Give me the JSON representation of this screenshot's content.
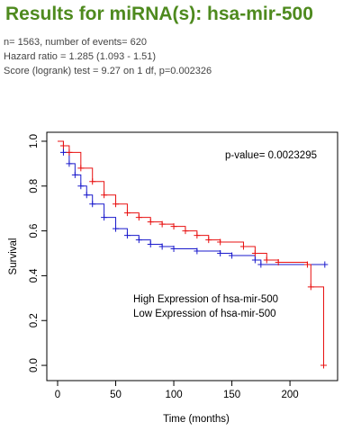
{
  "header": {
    "title": "Results for miRNA(s): hsa-mir-500",
    "stats": [
      "n= 1563, number of events= 620",
      "Hazard ratio = 1.285 (1.093 - 1.51)",
      "Score (logrank) test = 9.27 on 1 df, p=0.002326"
    ]
  },
  "chart_data": {
    "type": "line",
    "xlabel": "Time (months)",
    "ylabel": "Survival",
    "annotation": "p-value= 0.0023295",
    "xlim": [
      -9.3,
      241
    ],
    "ylim": [
      -0.068,
      1.04
    ],
    "xticks": [
      0,
      50,
      100,
      150,
      200
    ],
    "yticks": [
      {
        "value": 0,
        "label": "0.0"
      },
      {
        "value": 0.2,
        "label": "0.2"
      },
      {
        "value": 0.4,
        "label": "0.4"
      },
      {
        "value": 0.6,
        "label": "0.6"
      },
      {
        "value": 0.8,
        "label": "0.8"
      },
      {
        "value": 1,
        "label": "1.0"
      }
    ],
    "series": [
      {
        "name": "High Expression of hsa-mir-500",
        "color": "#1a1acc",
        "x": [
          0,
          5,
          10,
          15,
          20,
          25,
          30,
          40,
          50,
          60,
          70,
          80,
          90,
          100,
          120,
          140,
          150,
          170,
          175,
          230
        ],
        "values": [
          1.0,
          0.95,
          0.9,
          0.85,
          0.8,
          0.76,
          0.72,
          0.66,
          0.61,
          0.58,
          0.56,
          0.54,
          0.53,
          0.52,
          0.51,
          0.5,
          0.49,
          0.47,
          0.45,
          0.45
        ]
      },
      {
        "name": "Low Expression of hsa-mir-500",
        "color": "#e81010",
        "x": [
          0,
          5,
          10,
          20,
          30,
          40,
          50,
          60,
          70,
          80,
          90,
          100,
          110,
          120,
          130,
          140,
          160,
          170,
          180,
          190,
          215,
          218,
          229
        ],
        "values": [
          1.0,
          0.98,
          0.95,
          0.88,
          0.82,
          0.76,
          0.72,
          0.68,
          0.66,
          0.64,
          0.63,
          0.62,
          0.6,
          0.58,
          0.56,
          0.55,
          0.53,
          0.5,
          0.47,
          0.46,
          0.45,
          0.35,
          0.0
        ]
      }
    ]
  }
}
